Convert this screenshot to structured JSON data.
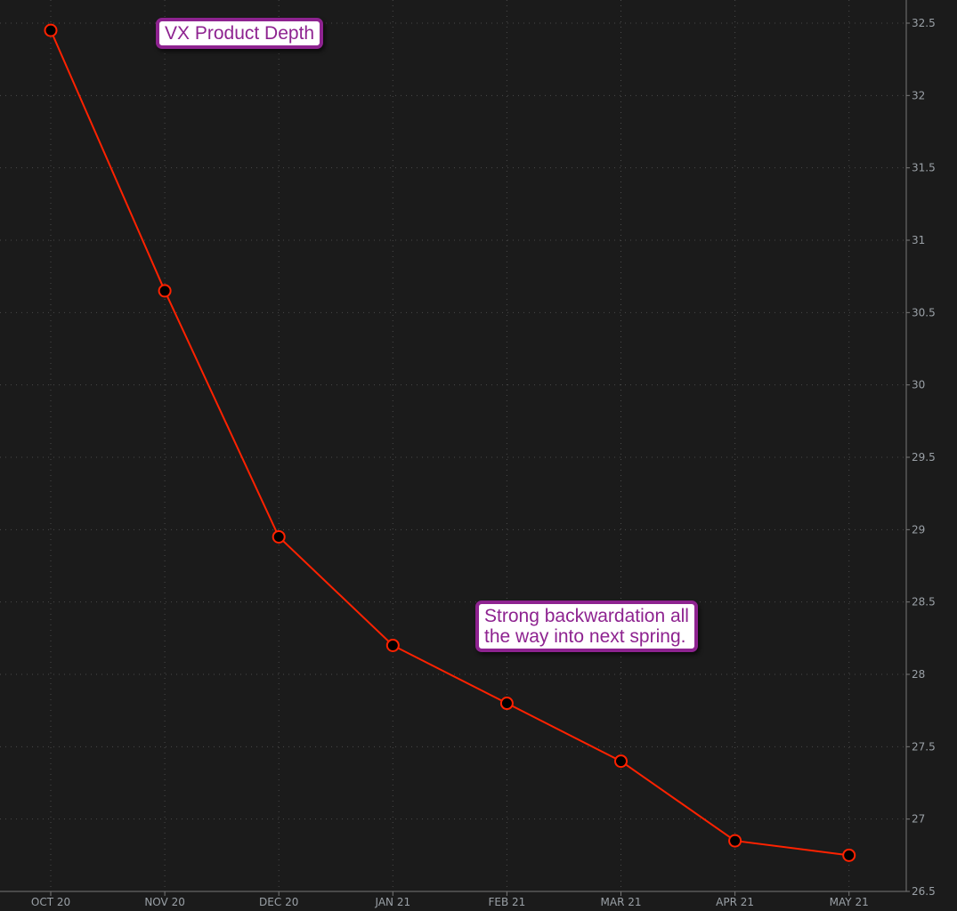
{
  "chart_data": {
    "type": "line",
    "title": "VX Product Depth",
    "categories": [
      "OCT 20",
      "NOV 20",
      "DEC 20",
      "JAN 21",
      "FEB 21",
      "MAR 21",
      "APR 21",
      "MAY 21"
    ],
    "values": [
      32.45,
      30.65,
      28.95,
      28.2,
      27.8,
      27.4,
      26.85,
      26.75
    ],
    "ylim": [
      26.5,
      32.5
    ],
    "yticks": [
      "26.5",
      "27",
      "27.5",
      "28",
      "28.5",
      "29",
      "29.5",
      "30",
      "30.5",
      "31",
      "31.5",
      "32",
      "32.5"
    ],
    "annotations": [
      "Strong backwardation all\nthe way into next spring."
    ],
    "grid": true,
    "y_axis_side": "right",
    "colors": {
      "line": "#ff2200",
      "background": "#1b1b1b",
      "annotation": "#8e2390"
    }
  }
}
